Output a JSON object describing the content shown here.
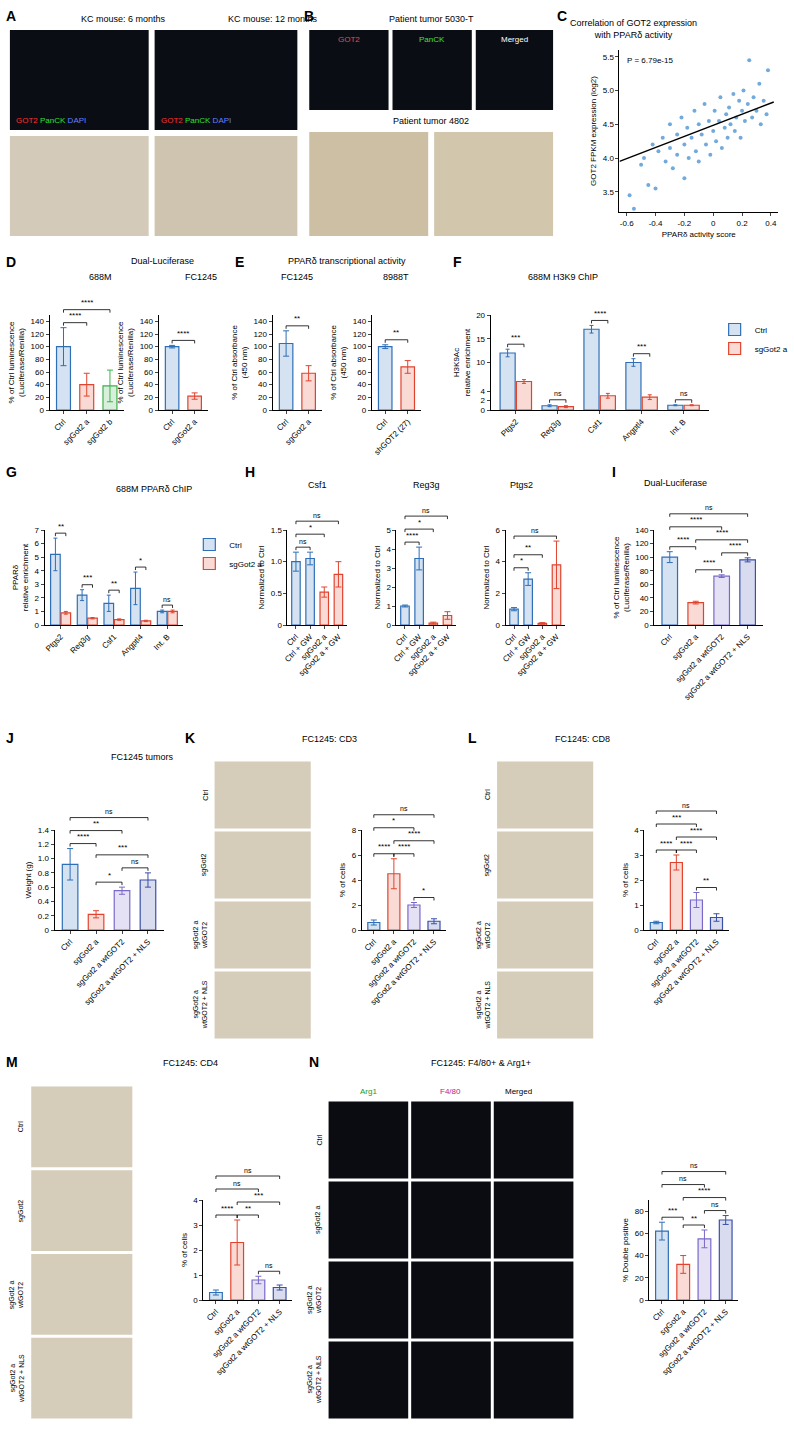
{
  "images": {
    "A": {
      "letter": "A",
      "titles": [
        "KC mouse: 6 months",
        "KC mouse: 12 months"
      ],
      "stains": [
        {
          "label": "GOT2",
          "color": "#ff3030"
        },
        {
          "label": "PanCK",
          "color": "#30e030"
        },
        {
          "label": "DAPI",
          "color": "#6080ff"
        }
      ]
    },
    "B": {
      "letter": "B",
      "titles": [
        "Patient tumor 5030-T",
        "Patient tumor 4802"
      ],
      "channels": [
        "GOT2",
        "PanCK",
        "Merged"
      ]
    }
  },
  "chart_data": [
    {
      "letter": "C",
      "type": "scatter",
      "title": [
        "Correlation of GOT2 expression",
        "with PPARδ activity"
      ],
      "xlabel": [
        "PPARδ activity score"
      ],
      "ylabel": [
        "GOT2 FPKM expression (log2)"
      ],
      "annotation": "P = 6.79e-15",
      "x": [
        -0.58,
        -0.55,
        -0.5,
        -0.48,
        -0.45,
        -0.42,
        -0.4,
        -0.38,
        -0.35,
        -0.33,
        -0.3,
        -0.3,
        -0.28,
        -0.25,
        -0.25,
        -0.22,
        -0.2,
        -0.2,
        -0.18,
        -0.17,
        -0.15,
        -0.13,
        -0.12,
        -0.1,
        -0.1,
        -0.08,
        -0.06,
        -0.05,
        -0.03,
        -0.02,
        0,
        0.01,
        0.02,
        0.04,
        0.05,
        0.06,
        0.08,
        0.09,
        0.1,
        0.11,
        0.12,
        0.14,
        0.15,
        0.16,
        0.18,
        0.19,
        0.2,
        0.21,
        0.22,
        0.24,
        0.25,
        0.27,
        0.28,
        0.3,
        0.32,
        0.33,
        0.35,
        0.37,
        0.38
      ],
      "values": [
        3.45,
        3.25,
        3.9,
        4.0,
        3.6,
        4.2,
        3.55,
        4.1,
        4.3,
        3.95,
        4.15,
        4.5,
        3.85,
        4.35,
        4.05,
        4.6,
        4.2,
        3.7,
        4.45,
        4.0,
        4.3,
        4.7,
        4.1,
        4.5,
        3.95,
        4.35,
        4.8,
        4.2,
        4.55,
        4.05,
        4.4,
        4.7,
        4.25,
        4.55,
        4.9,
        4.15,
        4.45,
        4.65,
        4.3,
        4.75,
        4.5,
        4.95,
        4.4,
        4.6,
        4.85,
        4.3,
        4.7,
        5.0,
        4.55,
        4.8,
        5.45,
        4.6,
        4.9,
        4.7,
        5.1,
        4.5,
        4.85,
        4.65,
        5.3
      ],
      "color": "#5b9bd5",
      "fit": {
        "x": [
          -0.65,
          0.42
        ],
        "values": [
          3.95,
          4.83
        ],
        "color": "#000000"
      },
      "xlim": [
        -0.65,
        0.45
      ],
      "xticks": [
        -0.6,
        -0.4,
        -0.2,
        0,
        0.2,
        0.4
      ],
      "ylim": [
        3.2,
        5.6
      ],
      "yticks": [
        3.5,
        {
          "value": 4,
          "label": "4.0"
        },
        4.5,
        {
          "value": 5,
          "label": "5.0"
        },
        5.5
      ]
    },
    {
      "letter": "D",
      "header": "Dual-Luciferase",
      "type": "bar",
      "title": "688M",
      "ylabel": [
        "% of Ctrl luminescence",
        "(Luciferase/Renilla)"
      ],
      "categories": [
        "Ctrl",
        "sgGot2 a",
        "sgGot2 b"
      ],
      "values": [
        100,
        40,
        38
      ],
      "errors": [
        30,
        18,
        25
      ],
      "colors": [
        "#2e6fb7",
        "#e0442f",
        "#3bb24a"
      ],
      "ylim": [
        0,
        150
      ],
      "yticks": [
        0,
        20,
        40,
        60,
        80,
        100,
        120,
        140
      ],
      "sig": [
        [
          0,
          1,
          "****"
        ],
        [
          0,
          2,
          "****"
        ]
      ]
    },
    {
      "type": "bar",
      "title": "FC1245",
      "ylabel": [
        "% of Ctrl luminescence",
        "(Luciferase/Renilla)"
      ],
      "categories": [
        "Ctrl",
        "sgGot2 a"
      ],
      "values": [
        100,
        22
      ],
      "errors": [
        2,
        5
      ],
      "colors": [
        "#2e6fb7",
        "#e0442f"
      ],
      "ylim": [
        0,
        150
      ],
      "yticks": [
        0,
        20,
        40,
        60,
        80,
        100,
        120,
        140
      ],
      "sig": [
        [
          0,
          1,
          "****"
        ]
      ]
    },
    {
      "letter": "E",
      "header": "PPARδ transcriptional activity",
      "type": "bar",
      "title": "FC1245",
      "ylabel": [
        "% of Ctrl absorbance",
        "(450 nm)"
      ],
      "categories": [
        "Ctrl",
        "sgGot2 a"
      ],
      "values": [
        105,
        58
      ],
      "errors": [
        20,
        12
      ],
      "colors": [
        "#2e6fb7",
        "#e0442f"
      ],
      "ylim": [
        0,
        150
      ],
      "yticks": [
        0,
        20,
        40,
        60,
        80,
        100,
        120,
        140
      ],
      "sig": [
        [
          0,
          1,
          "**"
        ]
      ]
    },
    {
      "type": "bar",
      "title": "8988T",
      "ylabel": [
        "% of Ctrl absorbance",
        "(450 nm)"
      ],
      "categories": [
        "Ctrl",
        "shGOT2 (27)"
      ],
      "values": [
        100,
        68
      ],
      "errors": [
        3,
        10
      ],
      "colors": [
        "#2e6fb7",
        "#e0442f"
      ],
      "ylim": [
        0,
        150
      ],
      "yticks": [
        0,
        20,
        40,
        60,
        80,
        100,
        120,
        140
      ],
      "sig": [
        [
          0,
          1,
          "**"
        ]
      ]
    },
    {
      "letter": "F",
      "type": "grouped_bar",
      "title": "688M H3K9 ChIP",
      "ylabel": [
        "H3K9Ac",
        "relative enrichment"
      ],
      "categories": [
        "Ptgs2",
        "Reg3g",
        "Csf1",
        "Angptl4",
        "Int. B"
      ],
      "series": [
        {
          "name": "Ctrl",
          "color": "#2e6fb7",
          "values": [
            12,
            0.9,
            17,
            10,
            1
          ],
          "errors": [
            0.8,
            0.2,
            0.8,
            0.8,
            0.1
          ]
        },
        {
          "name": "sgGot2 a",
          "color": "#e0442f",
          "values": [
            6,
            0.7,
            3,
            2.7,
            1
          ],
          "errors": [
            0.4,
            0.2,
            0.5,
            0.5,
            0.1
          ]
        }
      ],
      "ylim": [
        0,
        20
      ],
      "yticks": [
        0,
        2,
        4,
        10,
        15,
        20
      ],
      "legend": "right",
      "sig": [
        "***",
        "ns",
        "****",
        "***",
        "ns"
      ]
    },
    {
      "letter": "G",
      "type": "grouped_bar",
      "title": "688M PPARδ ChIP",
      "ylabel": [
        "PPARδ",
        "relative enrichment"
      ],
      "categories": [
        "Ptgs2",
        "Reg3g",
        "Csf1",
        "Angptl4",
        "Int. B"
      ],
      "series": [
        {
          "name": "Ctrl",
          "color": "#2e6fb7",
          "values": [
            5.2,
            2.2,
            1.6,
            2.7,
            1
          ],
          "errors": [
            1.2,
            0.4,
            0.6,
            1.2,
            0.1
          ]
        },
        {
          "name": "sgGot2 a",
          "color": "#e0442f",
          "values": [
            0.9,
            0.5,
            0.4,
            0.3,
            1
          ],
          "errors": [
            0.1,
            0.05,
            0.05,
            0.05,
            0.1
          ]
        }
      ],
      "ylim": [
        0,
        7
      ],
      "yticks": [
        0,
        1,
        2,
        3,
        4,
        5,
        6,
        7
      ],
      "legend": "right",
      "sig": [
        "**",
        "***",
        "**",
        "*",
        "ns"
      ]
    },
    {
      "letter": "H",
      "type": "bar",
      "title": "Csf1",
      "ylabel": [
        "Normalized to Ctrl"
      ],
      "categories": [
        "Ctrl",
        "Ctrl + GW",
        "sgGot2 a",
        "sgGot2 a + GW"
      ],
      "values": [
        1,
        1.05,
        0.52,
        0.8
      ],
      "errors": [
        0.15,
        0.1,
        0.08,
        0.2
      ],
      "colors": [
        "#2e6fb7",
        "#2e6fb7",
        "#e0442f",
        "#e0442f"
      ],
      "ylim": [
        0,
        1.5
      ],
      "yticks": [
        0,
        0.5,
        {
          "value": 1,
          "label": "1.0"
        },
        1.5
      ],
      "sig": [
        [
          0,
          1,
          "ns"
        ],
        [
          0,
          2,
          "*"
        ],
        [
          0,
          3,
          "ns"
        ]
      ]
    },
    {
      "type": "bar",
      "title": "Reg3g",
      "ylabel": [
        "Normalized to Ctrl"
      ],
      "categories": [
        "Ctrl",
        "Ctrl + GW",
        "sgGot2 a",
        "sgGot2 a + GW"
      ],
      "values": [
        1,
        3.5,
        0.1,
        0.5
      ],
      "errors": [
        0.05,
        0.6,
        0.05,
        0.2
      ],
      "colors": [
        "#2e6fb7",
        "#2e6fb7",
        "#e0442f",
        "#e0442f"
      ],
      "ylim": [
        0,
        5
      ],
      "yticks": [
        0,
        1,
        2,
        3,
        4,
        5
      ],
      "sig": [
        [
          0,
          1,
          "****"
        ],
        [
          0,
          2,
          "*"
        ],
        [
          0,
          3,
          "ns"
        ]
      ]
    },
    {
      "type": "bar",
      "title": "Ptgs2",
      "ylabel": [
        "Normalized to Ctrl"
      ],
      "categories": [
        "Ctrl",
        "Ctrl + GW",
        "sgGot2 a",
        "sgGot2 a + GW"
      ],
      "values": [
        1,
        2.9,
        0.1,
        3.8
      ],
      "errors": [
        0.1,
        0.4,
        0.05,
        1.5
      ],
      "colors": [
        "#2e6fb7",
        "#2e6fb7",
        "#e0442f",
        "#e0442f"
      ],
      "ylim": [
        0,
        6
      ],
      "yticks": [
        0,
        2,
        4,
        6
      ],
      "sig": [
        [
          0,
          1,
          "*"
        ],
        [
          0,
          2,
          "**"
        ],
        [
          0,
          3,
          "ns"
        ]
      ]
    },
    {
      "letter": "I",
      "type": "bar",
      "title": "Dual-Luciferase",
      "ylabel": [
        "% of Ctrl luminescence",
        "(Luciferase/Renilla)"
      ],
      "categories": [
        "Ctrl",
        "sgGot2 a",
        "sgGot2 a wtGOT2",
        "sgGot2 a wtGOT2 + NLS"
      ],
      "values": [
        100,
        33,
        72,
        96
      ],
      "errors": [
        8,
        2,
        2,
        3
      ],
      "colors": [
        "#2e6fb7",
        "#e0442f",
        "#7b68c8",
        "#3a4fa8"
      ],
      "ylim": [
        0,
        140
      ],
      "yticks": [
        0,
        20,
        40,
        60,
        80,
        100,
        120,
        140
      ],
      "sig": [
        [
          0,
          1,
          "****"
        ],
        [
          1,
          2,
          "****"
        ],
        [
          2,
          3,
          "****"
        ],
        [
          1,
          3,
          "****"
        ],
        [
          0,
          2,
          "****"
        ],
        [
          0,
          3,
          "ns"
        ]
      ]
    },
    {
      "letter": "J",
      "type": "bar",
      "title": "FC1245 tumors",
      "ylabel": [
        "Weight (g)"
      ],
      "categories": [
        "Ctrl",
        "sgGot2 a",
        "sgGot2 a wtGOT2",
        "sgGot2 a wtGOT2 + NLS"
      ],
      "values": [
        0.92,
        0.22,
        0.55,
        0.7
      ],
      "errors": [
        0.22,
        0.05,
        0.05,
        0.1
      ],
      "colors": [
        "#2e6fb7",
        "#e0442f",
        "#7b68c8",
        "#3a4fa8"
      ],
      "ylim": [
        0,
        1.4
      ],
      "yticks": [
        0,
        0.2,
        0.4,
        0.6,
        0.8,
        {
          "value": 1,
          "label": "1.0"
        },
        1.2,
        1.4
      ],
      "sig": [
        [
          1,
          2,
          "*"
        ],
        [
          2,
          3,
          "ns"
        ],
        [
          0,
          1,
          "****"
        ],
        [
          1,
          3,
          "***"
        ],
        [
          0,
          2,
          "**"
        ],
        [
          0,
          3,
          "ns"
        ]
      ]
    },
    {
      "letter": "K",
      "type": "bar",
      "title": "FC1245: CD3",
      "ylabel": [
        "% of cells"
      ],
      "categories": [
        "Ctrl",
        "sgGot2 a",
        "sgGot2 a wtGOT2",
        "sgGot2 a wtGOT2 + NLS"
      ],
      "values": [
        0.6,
        4.5,
        2.0,
        0.7
      ],
      "errors": [
        0.2,
        1.2,
        0.2,
        0.2
      ],
      "colors": [
        "#2e6fb7",
        "#e0442f",
        "#7b68c8",
        "#3a4fa8"
      ],
      "ylim": [
        0,
        8
      ],
      "yticks": [
        0,
        2,
        4,
        6,
        8
      ],
      "sig": [
        [
          1,
          2,
          "****"
        ],
        [
          2,
          3,
          "*"
        ],
        [
          0,
          1,
          "****"
        ],
        [
          1,
          3,
          "****"
        ],
        [
          0,
          2,
          "*"
        ],
        [
          0,
          3,
          "ns"
        ]
      ],
      "image_rows": [
        [
          "Ctrl"
        ],
        [
          "sgGot2"
        ],
        [
          "sgGot2 a",
          "wtGOT2"
        ],
        [
          "sgGot2 a",
          "wtGOT2 + NLS"
        ]
      ]
    },
    {
      "letter": "L",
      "type": "bar",
      "title": "FC1245: CD8",
      "ylabel": [
        "% of cells"
      ],
      "categories": [
        "Ctrl",
        "sgGot2 a",
        "sgGot2 a wtGOT2",
        "sgGot2 a wtGOT2 + NLS"
      ],
      "values": [
        0.3,
        2.7,
        1.2,
        0.5
      ],
      "errors": [
        0.05,
        0.3,
        0.3,
        0.15
      ],
      "colors": [
        "#2e6fb7",
        "#e0442f",
        "#7b68c8",
        "#3a4fa8"
      ],
      "ylim": [
        0,
        4
      ],
      "yticks": [
        0,
        1,
        2,
        3,
        4
      ],
      "sig": [
        [
          1,
          2,
          "****"
        ],
        [
          2,
          3,
          "**"
        ],
        [
          0,
          1,
          "****"
        ],
        [
          1,
          3,
          "****"
        ],
        [
          0,
          2,
          "***"
        ],
        [
          0,
          3,
          "ns"
        ]
      ],
      "image_rows": [
        [
          "Ctrl"
        ],
        [
          "sgGot2"
        ],
        [
          "sgGot2 a",
          "wtGOT2"
        ],
        [
          "sgGot2 a",
          "wtGOT2 + NLS"
        ]
      ]
    },
    {
      "letter": "M",
      "type": "bar",
      "title": "FC1245: CD4",
      "ylabel": [
        "% of cells"
      ],
      "categories": [
        "Ctrl",
        "sgGot2 a",
        "sgGot2 a wtGOT2",
        "sgGot2 a wtGOT2 + NLS"
      ],
      "values": [
        0.3,
        2.3,
        0.8,
        0.5
      ],
      "errors": [
        0.1,
        0.9,
        0.15,
        0.1
      ],
      "colors": [
        "#2e6fb7",
        "#e0442f",
        "#7b68c8",
        "#3a4fa8"
      ],
      "ylim": [
        0,
        4
      ],
      "yticks": [
        0,
        1,
        2,
        3,
        4
      ],
      "sig": [
        [
          1,
          2,
          "**"
        ],
        [
          2,
          3,
          "ns"
        ],
        [
          0,
          1,
          "****"
        ],
        [
          1,
          3,
          "***"
        ],
        [
          0,
          2,
          "ns"
        ],
        [
          0,
          3,
          "ns"
        ]
      ],
      "image_rows": [
        [
          "Ctrl"
        ],
        [
          "sgGot2"
        ],
        [
          "sgGot2 a",
          "wtGOT2"
        ],
        [
          "sgGot2 a",
          "wtGOT2 + NLS"
        ]
      ]
    },
    {
      "letter": "N",
      "type": "bar",
      "title": "FC1245: F4/80+ & Arg1+",
      "ylabel": [
        "% Double positive"
      ],
      "categories": [
        "Ctrl",
        "sgGot2 a",
        "sgGot2 a wtGOT2",
        "sgGot2 a wtGOT2 + NLS"
      ],
      "values": [
        62,
        32,
        55,
        72
      ],
      "errors": [
        8,
        8,
        8,
        4
      ],
      "colors": [
        "#2e6fb7",
        "#e0442f",
        "#7b68c8",
        "#3a4fa8"
      ],
      "ylim": [
        0,
        90
      ],
      "yticks": [
        0,
        20,
        40,
        60,
        80
      ],
      "sig": [
        [
          1,
          2,
          "**"
        ],
        [
          2,
          3,
          "ns"
        ],
        [
          0,
          1,
          "***"
        ],
        [
          1,
          3,
          "****"
        ],
        [
          0,
          2,
          "ns"
        ],
        [
          0,
          3,
          "ns"
        ]
      ],
      "image_rows": [
        [
          "Ctrl"
        ],
        [
          "sgGot2 a"
        ],
        [
          "sgGot2 a",
          "wtGOT2"
        ],
        [
          "sgGot2 a",
          "wtGOT2 + NLS"
        ]
      ],
      "image_columns": [
        "Arg1",
        "F4/80",
        "Merged"
      ]
    }
  ]
}
